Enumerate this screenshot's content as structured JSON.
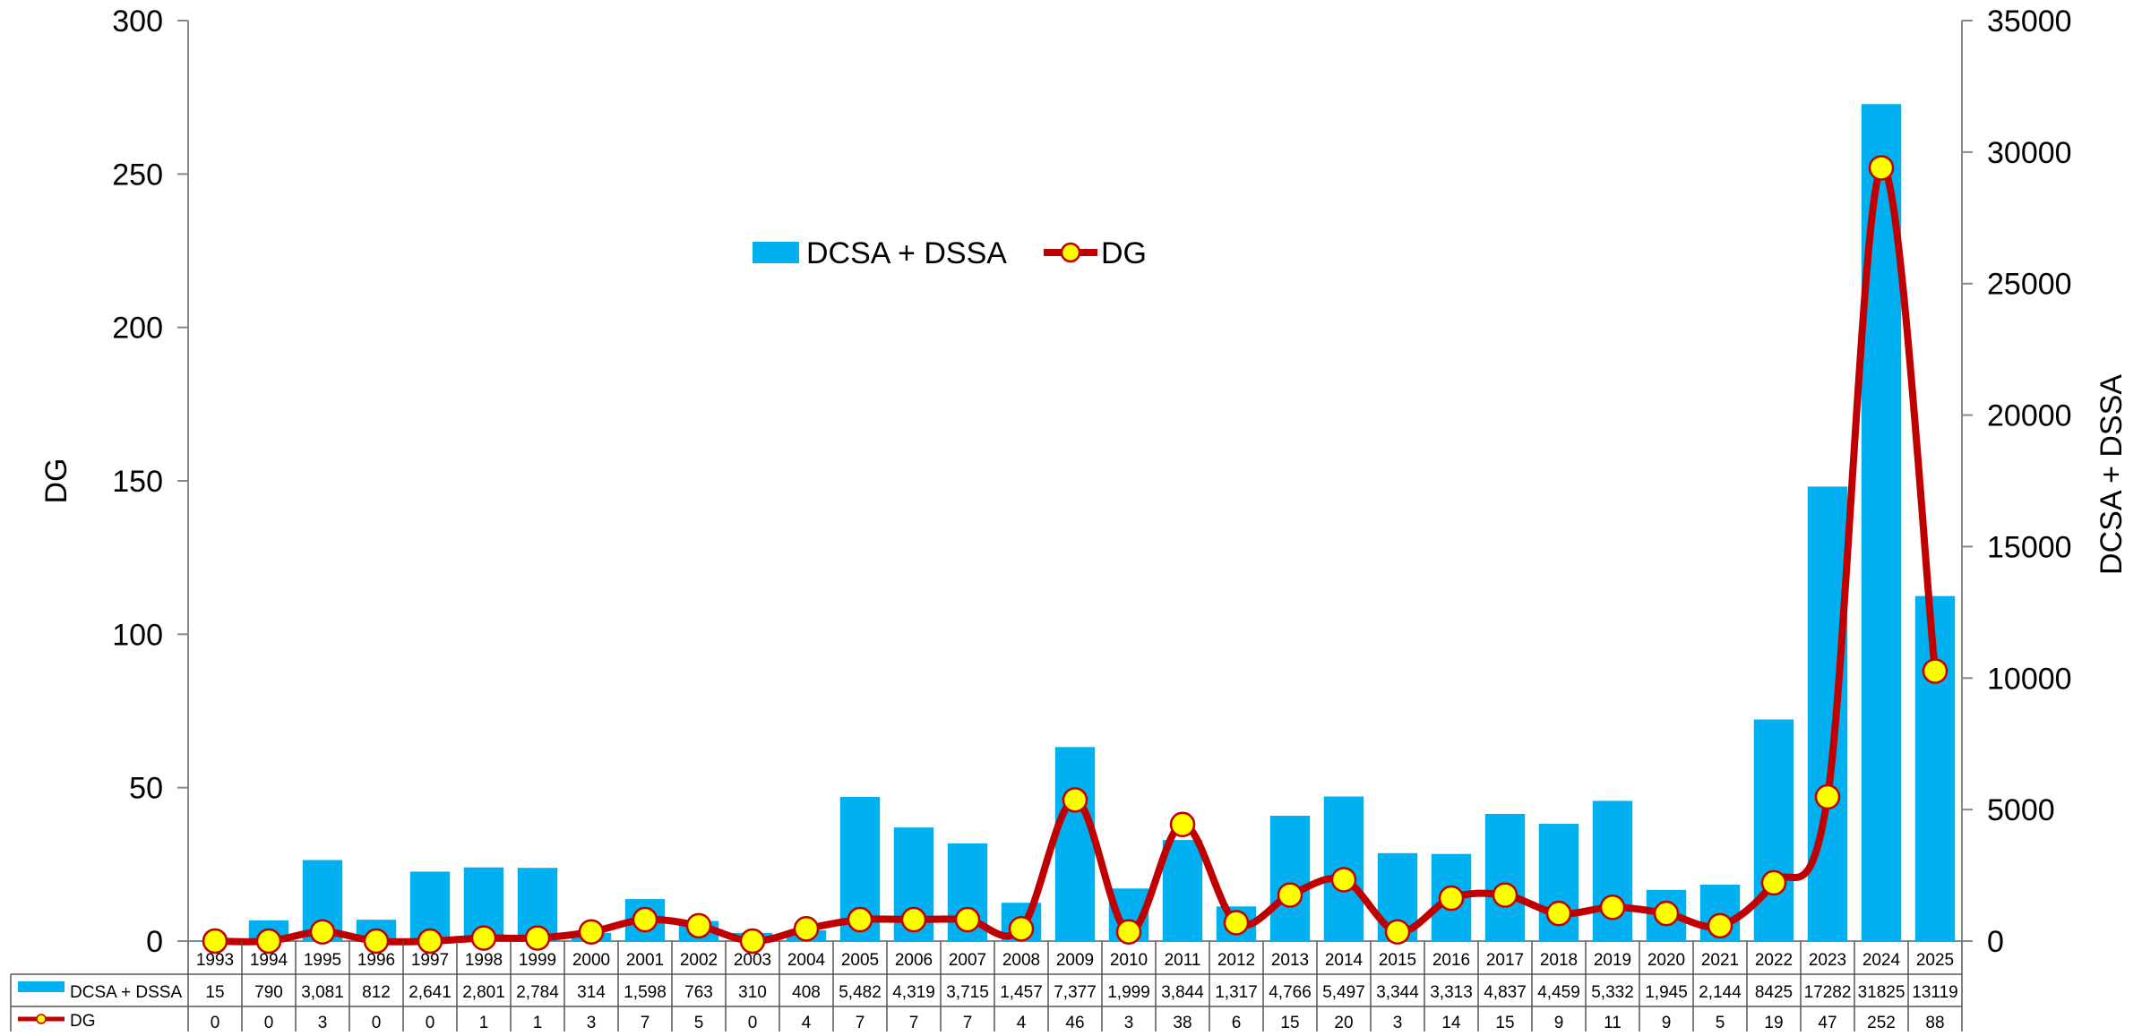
{
  "chart_data": {
    "type": "bar",
    "title": "",
    "categories": [
      "1993",
      "1994",
      "1995",
      "1996",
      "1997",
      "1998",
      "1999",
      "2000",
      "2001",
      "2002",
      "2003",
      "2004",
      "2005",
      "2006",
      "2007",
      "2008",
      "2009",
      "2010",
      "2011",
      "2012",
      "2013",
      "2014",
      "2015",
      "2016",
      "2017",
      "2018",
      "2019",
      "2020",
      "2021",
      "2022",
      "2023",
      "2024",
      "2025"
    ],
    "series": [
      {
        "name": "DCSA + DSSA",
        "type": "bar",
        "axis": "right",
        "color": "#00B0F0",
        "values": [
          15,
          790,
          3081,
          812,
          2641,
          2801,
          2784,
          314,
          1598,
          763,
          310,
          408,
          5482,
          4319,
          3715,
          1457,
          7377,
          1999,
          3844,
          1317,
          4766,
          5497,
          3344,
          3313,
          4837,
          4459,
          5332,
          1945,
          2144,
          8425,
          17282,
          31825,
          13119
        ],
        "labels": [
          "15",
          "790",
          "3,081",
          "812",
          "2,641",
          "2,801",
          "2,784",
          "314",
          "1,598",
          "763",
          "310",
          "408",
          "5,482",
          "4,319",
          "3,715",
          "1,457",
          "7,377",
          "1,999",
          "3,844",
          "1,317",
          "4,766",
          "5,497",
          "3,344",
          "3,313",
          "4,837",
          "4,459",
          "5,332",
          "1,945",
          "2,144",
          "8425",
          "17282",
          "31825",
          "13119"
        ]
      },
      {
        "name": "DG",
        "type": "line",
        "axis": "left",
        "color": "#C00000",
        "marker_color": "#FFFF00",
        "values": [
          0,
          0,
          3,
          0,
          0,
          1,
          1,
          3,
          7,
          5,
          0,
          4,
          7,
          7,
          7,
          4,
          46,
          3,
          38,
          6,
          15,
          20,
          3,
          14,
          15,
          9,
          11,
          9,
          5,
          19,
          47,
          252,
          88
        ],
        "labels": [
          "0",
          "0",
          "3",
          "0",
          "0",
          "1",
          "1",
          "3",
          "7",
          "5",
          "0",
          "4",
          "7",
          "7",
          "7",
          "4",
          "46",
          "3",
          "38",
          "6",
          "15",
          "20",
          "3",
          "14",
          "15",
          "9",
          "11",
          "9",
          "5",
          "19",
          "47",
          "252",
          "88"
        ]
      }
    ],
    "y_left": {
      "label": "DG",
      "min": 0,
      "max": 300,
      "ticks": [
        "0",
        "50",
        "100",
        "150",
        "200",
        "250",
        "300"
      ]
    },
    "y_right": {
      "label": "DCSA + DSSA",
      "min": 0,
      "max": 35000,
      "ticks": [
        "0",
        "5000",
        "10000",
        "15000",
        "20000",
        "25000",
        "30000",
        "35000"
      ]
    },
    "legend": {
      "position": "top-center",
      "items": [
        "DCSA + DSSA",
        "DG"
      ]
    },
    "data_table": true,
    "grid": false
  }
}
